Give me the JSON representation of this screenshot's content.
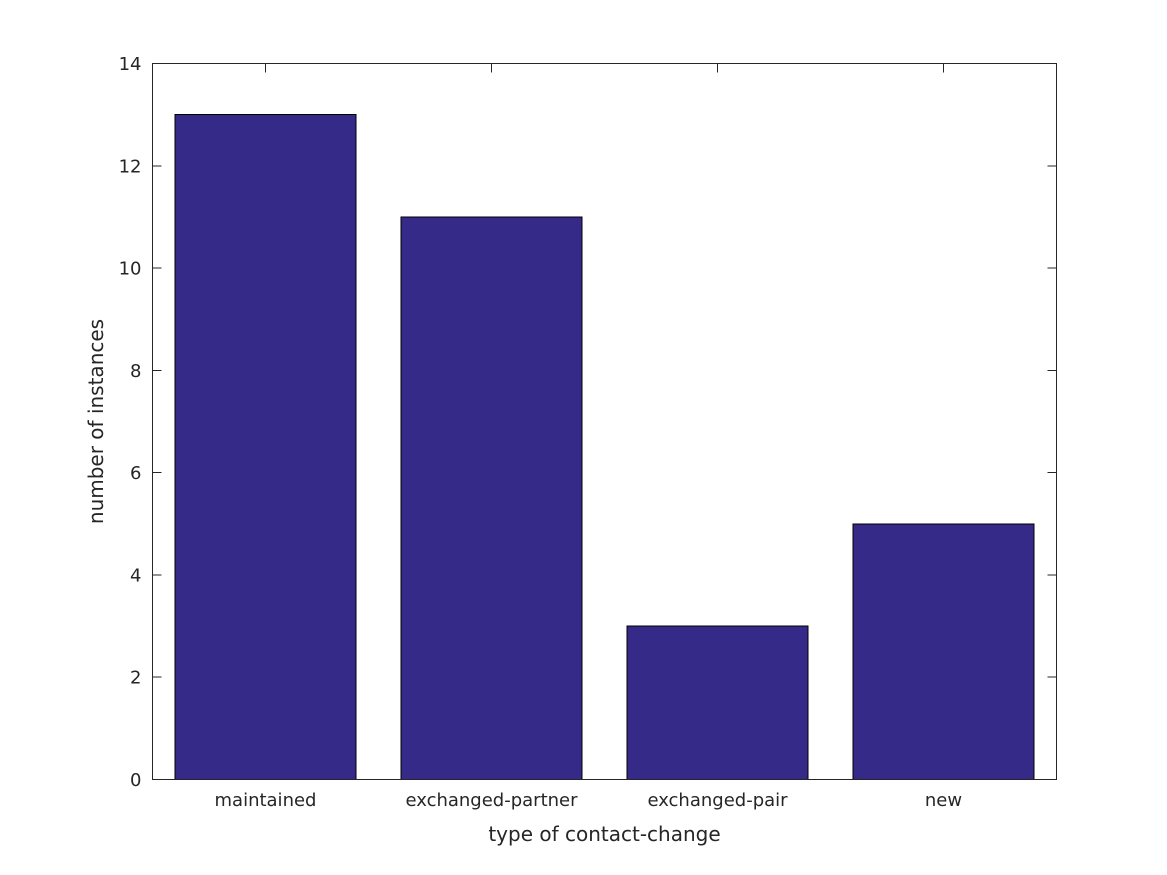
{
  "chart_data": {
    "type": "bar",
    "categories": [
      "maintained",
      "exchanged-partner",
      "exchanged-pair",
      "new"
    ],
    "values": [
      13,
      11,
      3,
      5
    ],
    "title": "",
    "xlabel": "type of contact-change",
    "ylabel": "number of instances",
    "ylim": [
      0,
      14
    ],
    "yticks": [
      0,
      2,
      4,
      6,
      8,
      10,
      12,
      14
    ],
    "grid": false,
    "legend": "none",
    "bar_color": "#352A87",
    "bar_edge_color": "#000000",
    "axis_color": "#262626",
    "text_color": "#262626",
    "background_color": "#ffffff",
    "tick_direction": "in",
    "box": true
  }
}
